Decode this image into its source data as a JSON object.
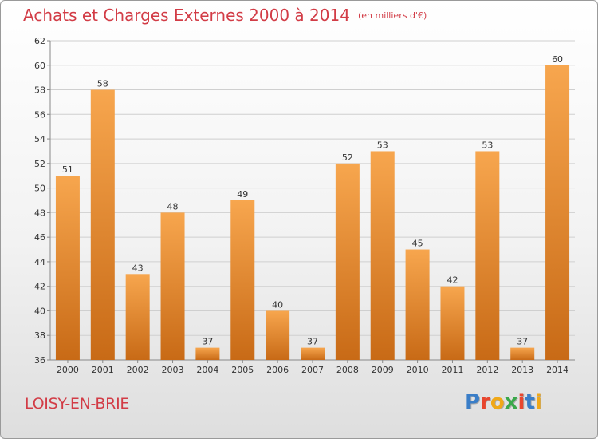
{
  "header": {
    "title": "Achats et Charges Externes 2000 à 2014",
    "subtitle": "(en milliers d'€)"
  },
  "footer": {
    "commune": "LOISY-EN-BRIE",
    "logo_text": "Proxiti",
    "logo_colors": [
      "#3a7ec8",
      "#e8462e",
      "#f0a818",
      "#3aa84a",
      "#e8462e",
      "#3a7ec8",
      "#f0a818"
    ]
  },
  "colors": {
    "bar_light": "#f7a64e",
    "bar_dark": "#c86a16",
    "grid": "#cfcfcf",
    "text": "#333333"
  },
  "chart_data": {
    "type": "bar",
    "title": "Achats et Charges Externes 2000 à 2014",
    "subtitle": "(en milliers d'€)",
    "categories": [
      "2000",
      "2001",
      "2002",
      "2003",
      "2004",
      "2005",
      "2006",
      "2007",
      "2008",
      "2009",
      "2010",
      "2011",
      "2012",
      "2013",
      "2014"
    ],
    "values": [
      51,
      58,
      43,
      48,
      37,
      49,
      40,
      37,
      52,
      53,
      45,
      42,
      53,
      37,
      60
    ],
    "ylim": [
      36,
      62
    ],
    "yticks": [
      36,
      38,
      40,
      42,
      44,
      46,
      48,
      50,
      52,
      54,
      56,
      58,
      60,
      62
    ],
    "grid": true
  }
}
